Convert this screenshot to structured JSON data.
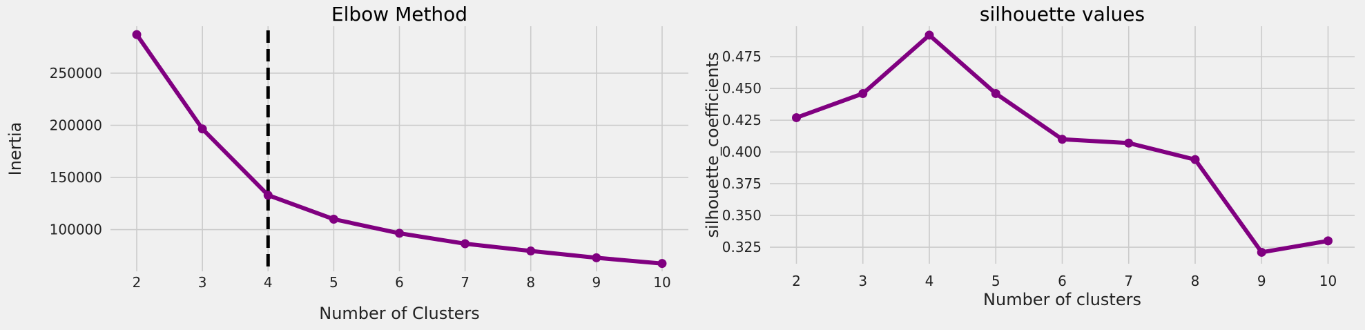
{
  "chart_data": [
    {
      "type": "line",
      "title": "Elbow Method",
      "xlabel": "Number of Clusters",
      "ylabel": "Inertia",
      "x": [
        2,
        3,
        4,
        5,
        6,
        7,
        8,
        9,
        10
      ],
      "xticks": [
        "2",
        "3",
        "4",
        "5",
        "6",
        "7",
        "8",
        "9",
        "10"
      ],
      "yticks": [
        100000,
        150000,
        200000,
        250000
      ],
      "ytick_labels": [
        "100000",
        "150000",
        "200000",
        "250000"
      ],
      "xlim": [
        1.6,
        10.4
      ],
      "ylim": [
        60000,
        295000
      ],
      "series": [
        {
          "values": [
            287000,
            196500,
            133000,
            110000,
            96500,
            86500,
            79500,
            73000,
            67500
          ]
        }
      ],
      "vline_x": 4,
      "grid": true,
      "colors": {
        "series": "#800080",
        "vline": "#000000",
        "grid": "#cbcbcb",
        "background": "#f0f0f0"
      }
    },
    {
      "type": "line",
      "title": "silhouette values",
      "xlabel": "Number of clusters",
      "ylabel": "silhouette_coefficients",
      "x": [
        2,
        3,
        4,
        5,
        6,
        7,
        8,
        9,
        10
      ],
      "xticks": [
        "2",
        "3",
        "4",
        "5",
        "6",
        "7",
        "8",
        "9",
        "10"
      ],
      "yticks": [
        0.325,
        0.35,
        0.375,
        0.4,
        0.425,
        0.45,
        0.475
      ],
      "ytick_labels": [
        "0.325",
        "0.350",
        "0.375",
        "0.400",
        "0.425",
        "0.450",
        "0.475"
      ],
      "xlim": [
        1.6,
        10.4
      ],
      "ylim": [
        0.312,
        0.499
      ],
      "series": [
        {
          "values": [
            0.427,
            0.446,
            0.492,
            0.446,
            0.41,
            0.407,
            0.394,
            0.321,
            0.33
          ]
        }
      ],
      "grid": true,
      "colors": {
        "series": "#800080",
        "grid": "#cbcbcb",
        "background": "#f0f0f0"
      }
    }
  ]
}
